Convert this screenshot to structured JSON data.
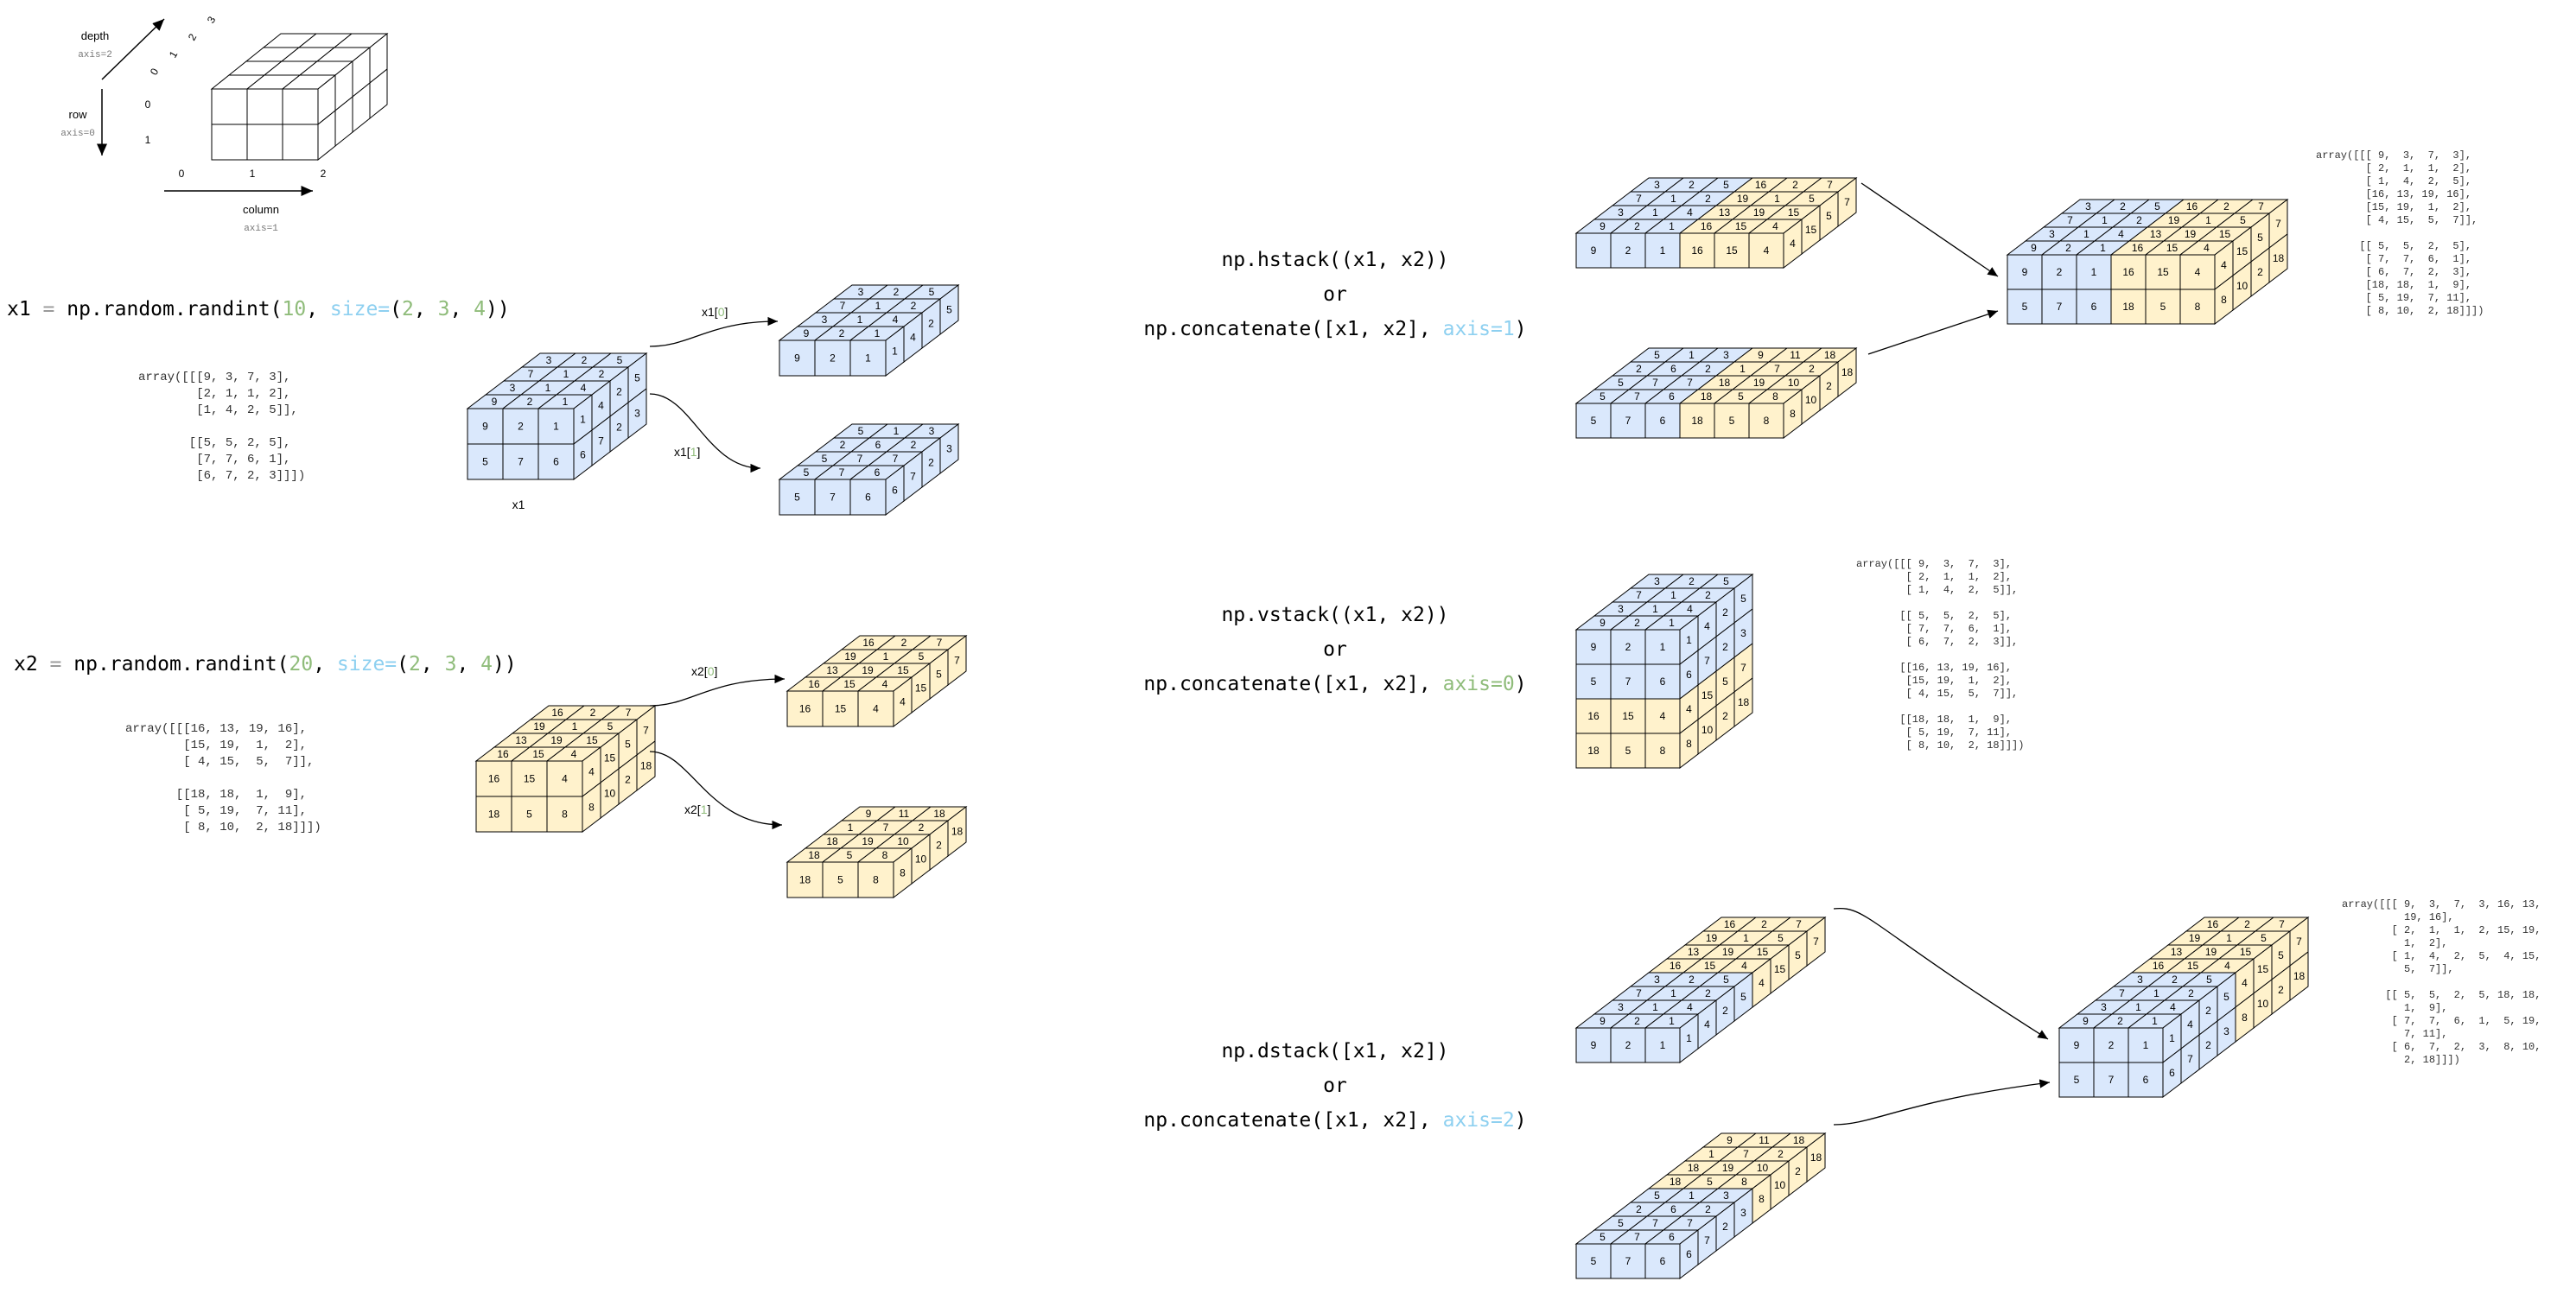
{
  "colors": {
    "blue_fill": "#dae8fc",
    "yellow_fill": "#fff2cc",
    "stroke": "#000000",
    "keyword": "#8ed0f0",
    "number": "#8fbc7a",
    "operator": "#9a9a9a"
  },
  "axes_legend": {
    "depth_label": "depth",
    "depth_axis": "axis=2",
    "row_label": "row",
    "row_axis": "axis=0",
    "column_label": "column",
    "column_axis": "axis=1",
    "col_ticks": [
      "0",
      "1",
      "2"
    ],
    "row_ticks": [
      "0",
      "1"
    ],
    "depth_ticks": [
      "0",
      "1",
      "2",
      "3"
    ]
  },
  "x1": {
    "code": [
      {
        "t": "x1 ",
        "c": ""
      },
      {
        "t": "=",
        "c": "op"
      },
      {
        "t": " np.random.randint(",
        "c": ""
      },
      {
        "t": "10",
        "c": "num"
      },
      {
        "t": ", ",
        "c": ""
      },
      {
        "t": "size=",
        "c": "kw"
      },
      {
        "t": "(",
        "c": ""
      },
      {
        "t": "2",
        "c": "num"
      },
      {
        "t": ", ",
        "c": ""
      },
      {
        "t": "3",
        "c": "num"
      },
      {
        "t": ", ",
        "c": ""
      },
      {
        "t": "4",
        "c": "num"
      },
      {
        "t": "))",
        "c": ""
      }
    ],
    "array_text": [
      "array([[[9, 3, 7, 3],",
      "        [2, 1, 1, 2],",
      "        [1, 4, 2, 5]],",
      "",
      "       [[5, 5, 2, 5],",
      "        [7, 7, 6, 1],",
      "        [6, 7, 2, 3]]])"
    ],
    "cube_label": "x1",
    "slice0_label": "x1[0]",
    "slice1_label": "x1[1]",
    "values": [
      [
        [
          9,
          3,
          7,
          3
        ],
        [
          2,
          1,
          1,
          2
        ],
        [
          1,
          4,
          2,
          5
        ]
      ],
      [
        [
          5,
          5,
          2,
          5
        ],
        [
          7,
          7,
          6,
          1
        ],
        [
          6,
          7,
          2,
          3
        ]
      ]
    ]
  },
  "x2": {
    "code": [
      {
        "t": "x2 ",
        "c": ""
      },
      {
        "t": "=",
        "c": "op"
      },
      {
        "t": " np.random.randint(",
        "c": ""
      },
      {
        "t": "20",
        "c": "num"
      },
      {
        "t": ", ",
        "c": ""
      },
      {
        "t": "size=",
        "c": "kw"
      },
      {
        "t": "(",
        "c": ""
      },
      {
        "t": "2",
        "c": "num"
      },
      {
        "t": ", ",
        "c": ""
      },
      {
        "t": "3",
        "c": "num"
      },
      {
        "t": ", ",
        "c": ""
      },
      {
        "t": "4",
        "c": "num"
      },
      {
        "t": "))",
        "c": ""
      }
    ],
    "array_text": [
      "array([[[16, 13, 19, 16],",
      "        [15, 19,  1,  2],",
      "        [ 4, 15,  5,  7]],",
      "",
      "       [[18, 18,  1,  9],",
      "        [ 5, 19,  7, 11],",
      "        [ 8, 10,  2, 18]]])"
    ],
    "slice0_label": "x2[0]",
    "slice1_label": "x2[1]",
    "values": [
      [
        [
          16,
          13,
          19,
          16
        ],
        [
          15,
          19,
          1,
          2
        ],
        [
          4,
          15,
          5,
          7
        ]
      ],
      [
        [
          18,
          18,
          1,
          9
        ],
        [
          5,
          19,
          7,
          11
        ],
        [
          8,
          10,
          2,
          18
        ]
      ]
    ]
  },
  "hstack": {
    "line1": "np.hstack((x1, x2))",
    "line2": "or",
    "line3_parts": [
      {
        "t": "np.concatenate([x1, x2], ",
        "c": ""
      },
      {
        "t": "axis=1",
        "c": "kw"
      },
      {
        "t": ")",
        "c": ""
      }
    ],
    "array_text": [
      "array([[[ 9,  3,  7,  3],",
      "        [ 2,  1,  1,  2],",
      "        [ 1,  4,  2,  5],",
      "        [16, 13, 19, 16],",
      "        [15, 19,  1,  2],",
      "        [ 4, 15,  5,  7]],",
      "",
      "       [[ 5,  5,  2,  5],",
      "        [ 7,  7,  6,  1],",
      "        [ 6,  7,  2,  3],",
      "        [18, 18,  1,  9],",
      "        [ 5, 19,  7, 11],",
      "        [ 8, 10,  2, 18]]])"
    ]
  },
  "vstack": {
    "line1": "np.vstack((x1, x2))",
    "line2": "or",
    "line3_parts": [
      {
        "t": "np.concatenate([x1, x2], ",
        "c": ""
      },
      {
        "t": "axis=0",
        "c": "num"
      },
      {
        "t": ")",
        "c": ""
      }
    ],
    "array_text": [
      "array([[[ 9,  3,  7,  3],",
      "        [ 2,  1,  1,  2],",
      "        [ 1,  4,  2,  5]],",
      "",
      "       [[ 5,  5,  2,  5],",
      "        [ 7,  7,  6,  1],",
      "        [ 6,  7,  2,  3]],",
      "",
      "       [[16, 13, 19, 16],",
      "        [15, 19,  1,  2],",
      "        [ 4, 15,  5,  7]],",
      "",
      "       [[18, 18,  1,  9],",
      "        [ 5, 19,  7, 11],",
      "        [ 8, 10,  2, 18]]])"
    ]
  },
  "dstack": {
    "line1": "np.dstack([x1, x2])",
    "line2": "or",
    "line3_parts": [
      {
        "t": "np.concatenate([x1, x2], ",
        "c": ""
      },
      {
        "t": "axis=2",
        "c": "kw"
      },
      {
        "t": ")",
        "c": ""
      }
    ],
    "array_text": [
      "array([[[ 9,  3,  7,  3, 16, 13,",
      "          19, 16],",
      "        [ 2,  1,  1,  2, 15, 19,",
      "          1,  2],",
      "        [ 1,  4,  2,  5,  4, 15,",
      "          5,  7]],",
      "",
      "       [[ 5,  5,  2,  5, 18, 18,",
      "          1,  9],",
      "        [ 7,  7,  6,  1,  5, 19,",
      "          7, 11],",
      "        [ 6,  7,  2,  3,  8, 10,",
      "          2, 18]]])"
    ]
  }
}
